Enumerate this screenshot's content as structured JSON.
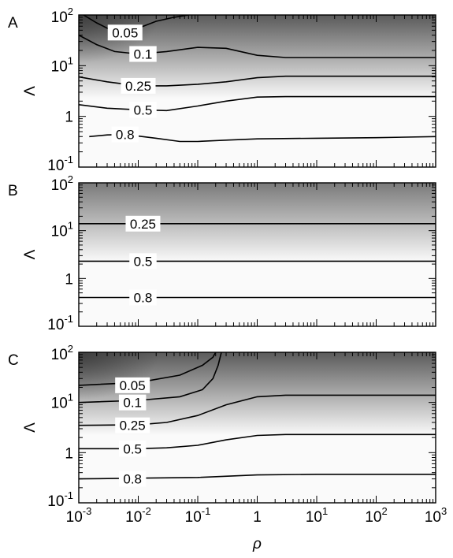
{
  "chart_data": [
    {
      "type": "heatmap",
      "panel_label": "A",
      "x_scale": "log",
      "y_scale": "log",
      "xlim": [
        0.001,
        1000
      ],
      "ylim": [
        0.1,
        100
      ],
      "ylabel": "Λ",
      "xlabel": "",
      "yticks": [
        {
          "base": "10",
          "exp": "-1",
          "value": 0.1
        },
        {
          "base": "1",
          "exp": "",
          "value": 1
        },
        {
          "base": "10",
          "exp": "1",
          "value": 10
        },
        {
          "base": "10",
          "exp": "2",
          "value": 100
        }
      ],
      "xticks": [],
      "colormap": {
        "low_color": "#fafafa",
        "high_color": "#5a5a5a"
      },
      "contours": [
        {
          "level": "0.05",
          "label_x": 0.006,
          "label_y": 45,
          "points": [
            [
              0.0012,
              100
            ],
            [
              0.002,
              70
            ],
            [
              0.003,
              55
            ],
            [
              0.006,
              42
            ],
            [
              0.01,
              55
            ],
            [
              0.02,
              75
            ],
            [
              0.04,
              90
            ],
            [
              0.07,
              100
            ]
          ]
        },
        {
          "level": "0.1",
          "label_x": 0.012,
          "label_y": 17,
          "points": [
            [
              0.001,
              40
            ],
            [
              0.002,
              26
            ],
            [
              0.004,
              19
            ],
            [
              0.01,
              17
            ],
            [
              0.03,
              19
            ],
            [
              0.1,
              23
            ],
            [
              0.3,
              22
            ],
            [
              1,
              16
            ],
            [
              3,
              14.5
            ],
            [
              10,
              14.5
            ],
            [
              100,
              14.5
            ],
            [
              1000,
              14.5
            ]
          ]
        },
        {
          "level": "0.25",
          "label_x": 0.01,
          "label_y": 4,
          "points": [
            [
              0.001,
              6
            ],
            [
              0.003,
              4.8
            ],
            [
              0.01,
              4
            ],
            [
              0.03,
              4
            ],
            [
              0.1,
              4.3
            ],
            [
              0.3,
              4.8
            ],
            [
              1,
              5.8
            ],
            [
              3,
              6.2
            ],
            [
              10,
              6.2
            ],
            [
              100,
              6.2
            ],
            [
              1000,
              6.2
            ]
          ]
        },
        {
          "level": "0.5",
          "label_x": 0.012,
          "label_y": 1.35,
          "points": [
            [
              0.001,
              1.7
            ],
            [
              0.003,
              1.45
            ],
            [
              0.01,
              1.35
            ],
            [
              0.03,
              1.3
            ],
            [
              0.1,
              1.6
            ],
            [
              0.3,
              2
            ],
            [
              1,
              2.4
            ],
            [
              3,
              2.45
            ],
            [
              10,
              2.45
            ],
            [
              100,
              2.45
            ],
            [
              1000,
              2.45
            ]
          ]
        },
        {
          "level": "0.8",
          "label_x": 0.006,
          "label_y": 0.44,
          "points": [
            [
              0.0015,
              0.4
            ],
            [
              0.003,
              0.43
            ],
            [
              0.006,
              0.44
            ],
            [
              0.02,
              0.37
            ],
            [
              0.05,
              0.32
            ],
            [
              0.1,
              0.32
            ],
            [
              0.3,
              0.34
            ],
            [
              1,
              0.36
            ],
            [
              10,
              0.37
            ],
            [
              100,
              0.38
            ],
            [
              1000,
              0.4
            ]
          ]
        }
      ]
    },
    {
      "type": "heatmap",
      "panel_label": "B",
      "x_scale": "log",
      "y_scale": "log",
      "xlim": [
        0.001,
        1000
      ],
      "ylim": [
        0.1,
        100
      ],
      "ylabel": "Λ",
      "xlabel": "",
      "yticks": [
        {
          "base": "10",
          "exp": "-1",
          "value": 0.1
        },
        {
          "base": "1",
          "exp": "",
          "value": 1
        },
        {
          "base": "10",
          "exp": "1",
          "value": 10
        },
        {
          "base": "10",
          "exp": "2",
          "value": 100
        }
      ],
      "xticks": [],
      "colormap": {
        "low_color": "#fafafa",
        "high_color": "#7a7a7a"
      },
      "contours": [
        {
          "level": "0.25",
          "label_x": 0.012,
          "label_y": 14,
          "points": [
            [
              0.001,
              14
            ],
            [
              1000,
              14
            ]
          ]
        },
        {
          "level": "0.5",
          "label_x": 0.012,
          "label_y": 2.3,
          "points": [
            [
              0.001,
              2.3
            ],
            [
              1000,
              2.3
            ]
          ]
        },
        {
          "level": "0.8",
          "label_x": 0.012,
          "label_y": 0.4,
          "points": [
            [
              0.001,
              0.4
            ],
            [
              1000,
              0.4
            ]
          ]
        }
      ]
    },
    {
      "type": "heatmap",
      "panel_label": "C",
      "x_scale": "log",
      "y_scale": "log",
      "xlim": [
        0.001,
        1000
      ],
      "ylim": [
        0.1,
        100
      ],
      "ylabel": "Λ",
      "xlabel": "ρ",
      "yticks": [
        {
          "base": "10",
          "exp": "-1",
          "value": 0.1
        },
        {
          "base": "1",
          "exp": "",
          "value": 1
        },
        {
          "base": "10",
          "exp": "1",
          "value": 10
        },
        {
          "base": "10",
          "exp": "2",
          "value": 100
        }
      ],
      "xticks": [
        {
          "base": "10",
          "exp": "-3",
          "value": 0.001
        },
        {
          "base": "10",
          "exp": "-2",
          "value": 0.01
        },
        {
          "base": "10",
          "exp": "-1",
          "value": 0.1
        },
        {
          "base": "1",
          "exp": "",
          "value": 1
        },
        {
          "base": "10",
          "exp": "1",
          "value": 10
        },
        {
          "base": "10",
          "exp": "2",
          "value": 100
        },
        {
          "base": "10",
          "exp": "3",
          "value": 1000
        }
      ],
      "colormap": {
        "low_color": "#fafafa",
        "high_color": "#5a5a5a"
      },
      "contours": [
        {
          "level": "0.05",
          "label_x": 0.008,
          "label_y": 22,
          "points": [
            [
              0.001,
              22
            ],
            [
              0.01,
              25
            ],
            [
              0.05,
              35
            ],
            [
              0.12,
              55
            ],
            [
              0.18,
              80
            ],
            [
              0.2,
              100
            ]
          ]
        },
        {
          "level": "0.1",
          "label_x": 0.008,
          "label_y": 10,
          "points": [
            [
              0.001,
              10
            ],
            [
              0.01,
              11
            ],
            [
              0.05,
              13
            ],
            [
              0.12,
              18
            ],
            [
              0.18,
              30
            ],
            [
              0.22,
              55
            ],
            [
              0.25,
              100
            ]
          ]
        },
        {
          "level": "0.25",
          "label_x": 0.008,
          "label_y": 3.5,
          "points": [
            [
              0.001,
              3.5
            ],
            [
              0.01,
              3.6
            ],
            [
              0.03,
              4
            ],
            [
              0.1,
              5.5
            ],
            [
              0.3,
              9
            ],
            [
              1,
              13
            ],
            [
              3,
              14
            ],
            [
              10,
              14
            ],
            [
              100,
              14
            ],
            [
              1000,
              14
            ]
          ]
        },
        {
          "level": "0.5",
          "label_x": 0.008,
          "label_y": 1.2,
          "points": [
            [
              0.001,
              1.2
            ],
            [
              0.01,
              1.2
            ],
            [
              0.03,
              1.25
            ],
            [
              0.1,
              1.4
            ],
            [
              0.3,
              1.8
            ],
            [
              1,
              2.2
            ],
            [
              3,
              2.3
            ],
            [
              10,
              2.3
            ],
            [
              100,
              2.3
            ],
            [
              1000,
              2.3
            ]
          ]
        },
        {
          "level": "0.8",
          "label_x": 0.008,
          "label_y": 0.3,
          "points": [
            [
              0.001,
              0.3
            ],
            [
              0.01,
              0.31
            ],
            [
              0.1,
              0.32
            ],
            [
              1,
              0.36
            ],
            [
              10,
              0.37
            ],
            [
              100,
              0.37
            ],
            [
              1000,
              0.37
            ]
          ]
        }
      ]
    }
  ]
}
